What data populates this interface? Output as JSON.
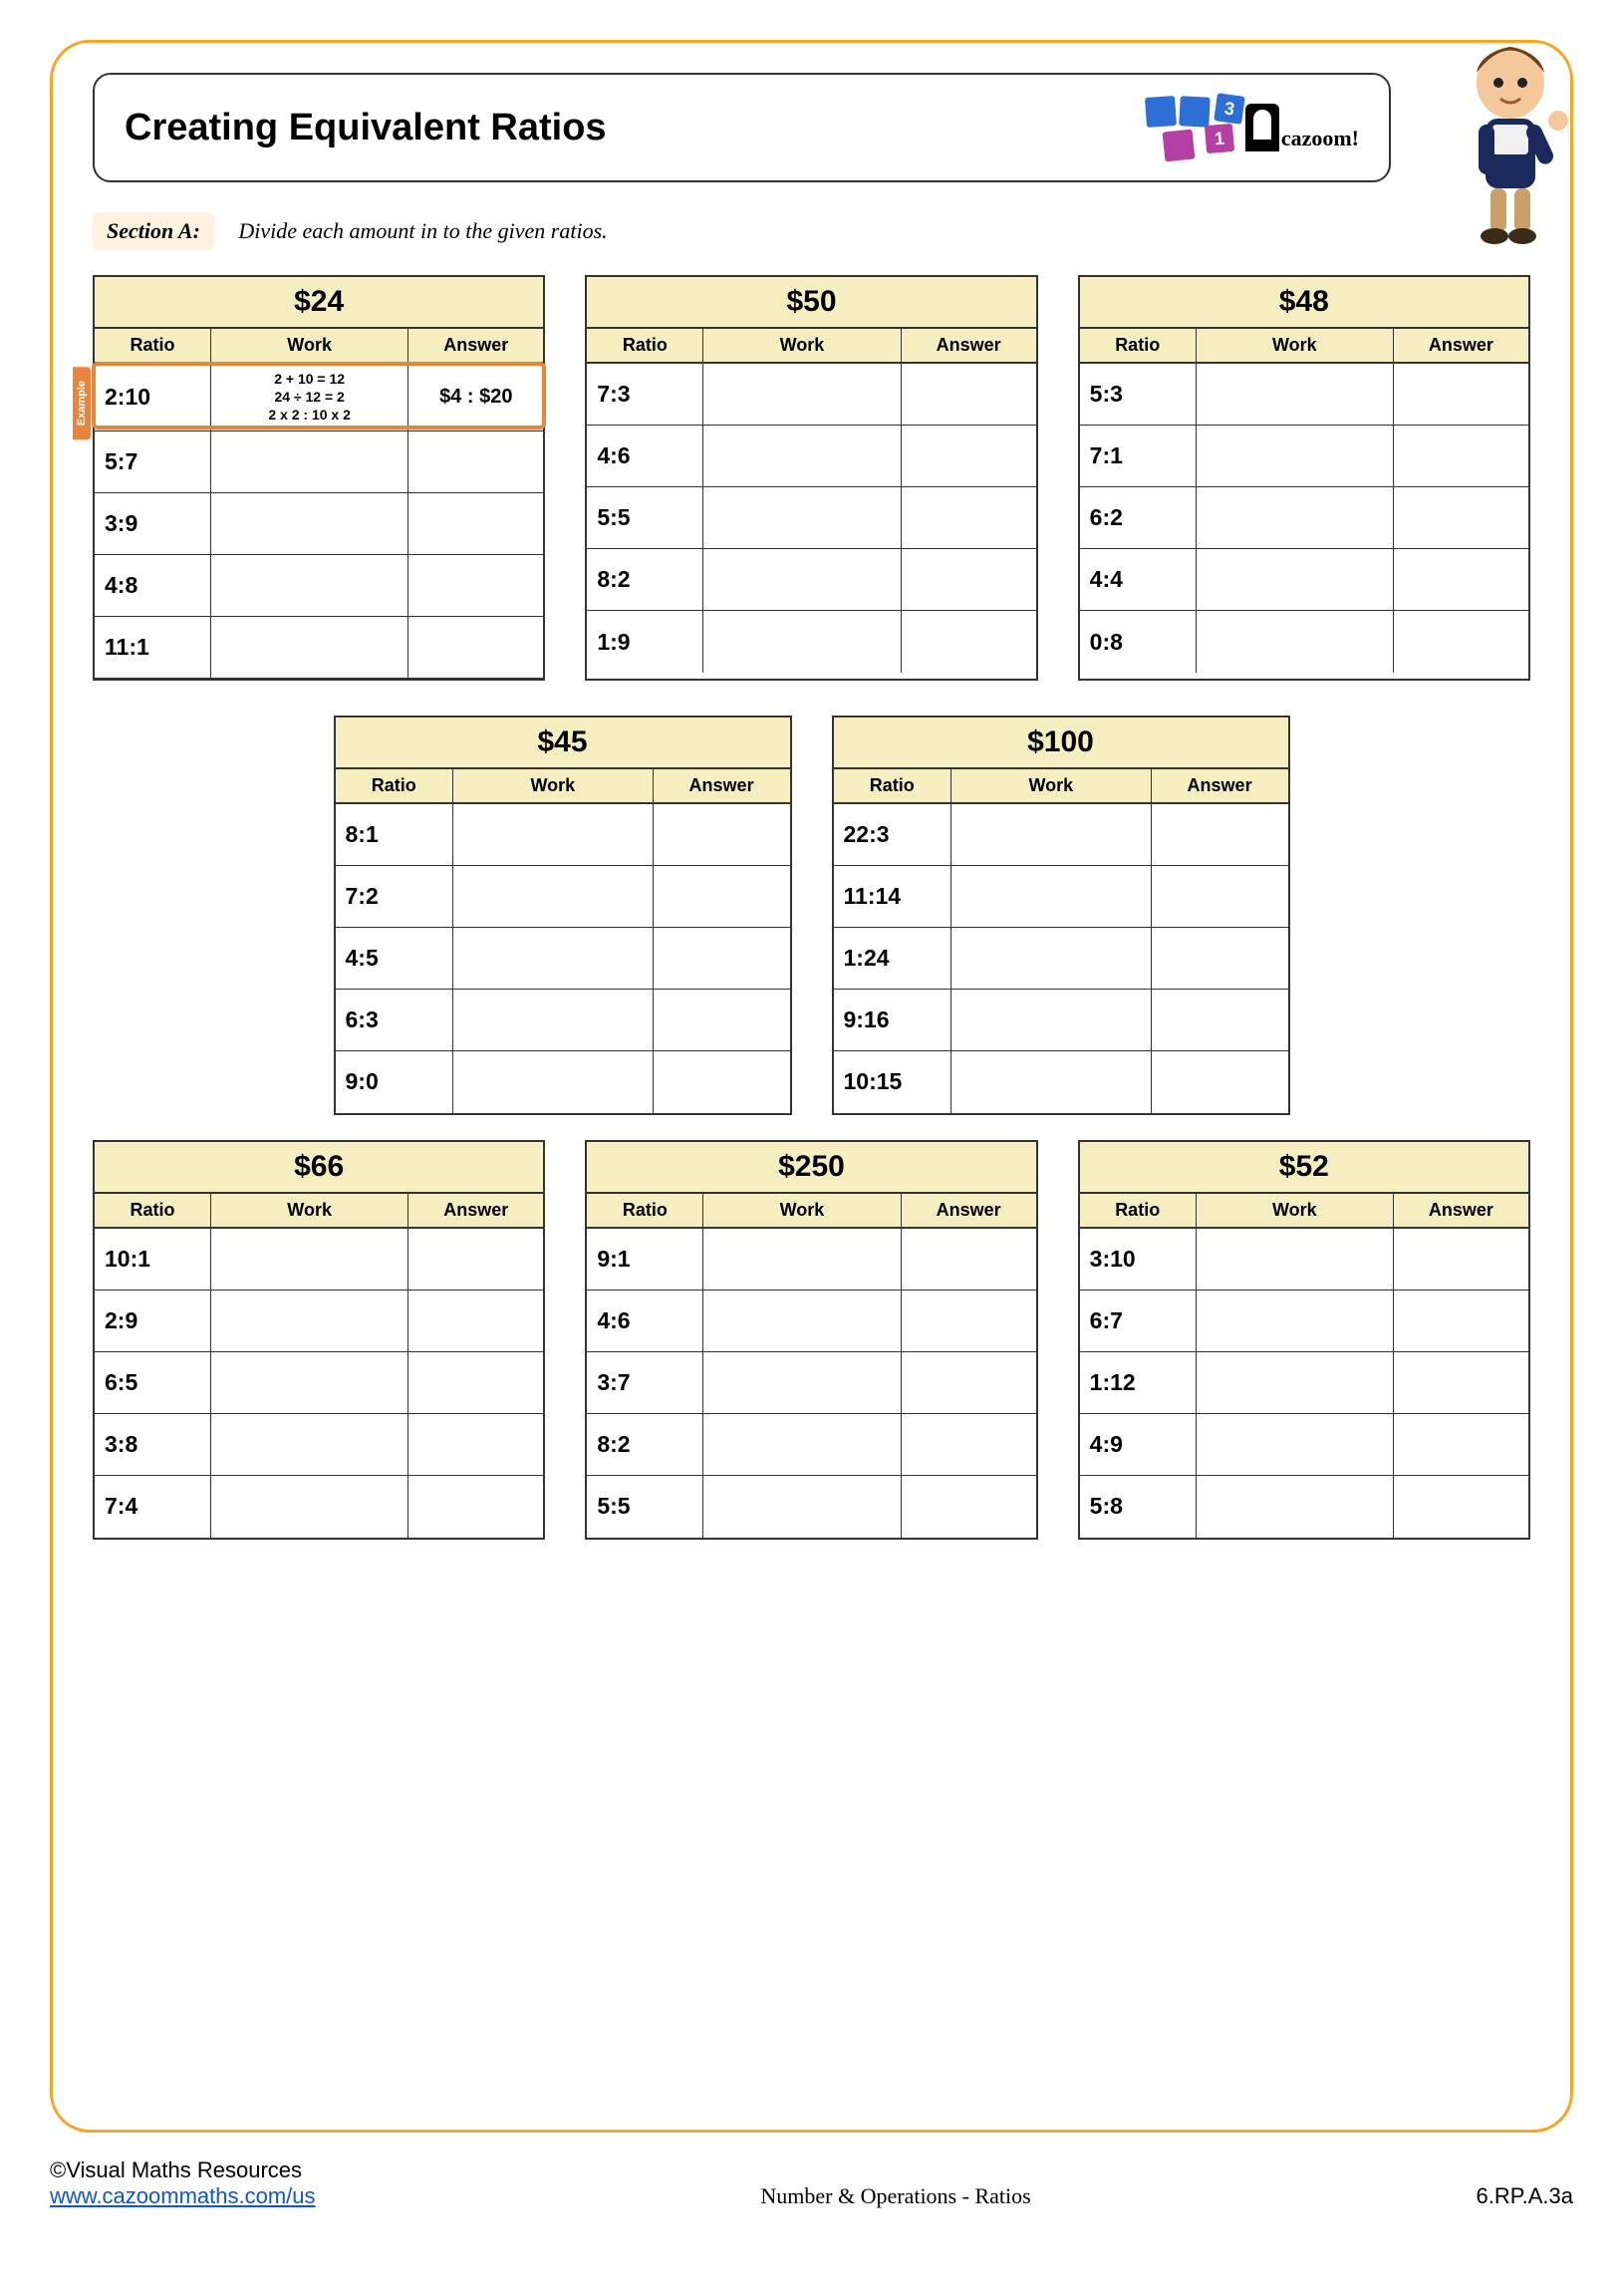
{
  "title": "Creating Equivalent Ratios",
  "logo": {
    "num_top": "3",
    "num_bottom": "1",
    "brand": "cazoom!"
  },
  "section": {
    "label": "Section A:",
    "instruction": "Divide each amount in to the given ratios."
  },
  "column_headers": {
    "ratio": "Ratio",
    "work": "Work",
    "answer": "Answer"
  },
  "example_label": "Example",
  "colors": {
    "page_border": "#f5a623",
    "header_bg": "#f5eec0",
    "example": "#e8853c",
    "border": "#333333"
  },
  "tables_row1": [
    {
      "amount": "$24",
      "has_example": true,
      "rows": [
        {
          "ratio": "2:10",
          "work": "2 + 10 = 12\n24 ÷ 12 = 2\n2 x 2 : 10 x 2",
          "answer": "$4 : $20"
        },
        {
          "ratio": "5:7",
          "work": "",
          "answer": ""
        },
        {
          "ratio": "3:9",
          "work": "",
          "answer": ""
        },
        {
          "ratio": "4:8",
          "work": "",
          "answer": ""
        },
        {
          "ratio": "11:1",
          "work": "",
          "answer": ""
        }
      ]
    },
    {
      "amount": "$50",
      "rows": [
        {
          "ratio": "7:3",
          "work": "",
          "answer": ""
        },
        {
          "ratio": "4:6",
          "work": "",
          "answer": ""
        },
        {
          "ratio": "5:5",
          "work": "",
          "answer": ""
        },
        {
          "ratio": "8:2",
          "work": "",
          "answer": ""
        },
        {
          "ratio": "1:9",
          "work": "",
          "answer": ""
        }
      ]
    },
    {
      "amount": "$48",
      "rows": [
        {
          "ratio": "5:3",
          "work": "",
          "answer": ""
        },
        {
          "ratio": "7:1",
          "work": "",
          "answer": ""
        },
        {
          "ratio": "6:2",
          "work": "",
          "answer": ""
        },
        {
          "ratio": "4:4",
          "work": "",
          "answer": ""
        },
        {
          "ratio": "0:8",
          "work": "",
          "answer": ""
        }
      ]
    }
  ],
  "tables_row2": [
    {
      "amount": "$45",
      "rows": [
        {
          "ratio": "8:1",
          "work": "",
          "answer": ""
        },
        {
          "ratio": "7:2",
          "work": "",
          "answer": ""
        },
        {
          "ratio": "4:5",
          "work": "",
          "answer": ""
        },
        {
          "ratio": "6:3",
          "work": "",
          "answer": ""
        },
        {
          "ratio": "9:0",
          "work": "",
          "answer": ""
        }
      ]
    },
    {
      "amount": "$100",
      "rows": [
        {
          "ratio": "22:3",
          "work": "",
          "answer": ""
        },
        {
          "ratio": "11:14",
          "work": "",
          "answer": ""
        },
        {
          "ratio": "1:24",
          "work": "",
          "answer": ""
        },
        {
          "ratio": "9:16",
          "work": "",
          "answer": ""
        },
        {
          "ratio": "10:15",
          "work": "",
          "answer": ""
        }
      ]
    }
  ],
  "tables_row3": [
    {
      "amount": "$66",
      "rows": [
        {
          "ratio": "10:1",
          "work": "",
          "answer": ""
        },
        {
          "ratio": "2:9",
          "work": "",
          "answer": ""
        },
        {
          "ratio": "6:5",
          "work": "",
          "answer": ""
        },
        {
          "ratio": "3:8",
          "work": "",
          "answer": ""
        },
        {
          "ratio": "7:4",
          "work": "",
          "answer": ""
        }
      ]
    },
    {
      "amount": "$250",
      "rows": [
        {
          "ratio": "9:1",
          "work": "",
          "answer": ""
        },
        {
          "ratio": "4:6",
          "work": "",
          "answer": ""
        },
        {
          "ratio": "3:7",
          "work": "",
          "answer": ""
        },
        {
          "ratio": "8:2",
          "work": "",
          "answer": ""
        },
        {
          "ratio": "5:5",
          "work": "",
          "answer": ""
        }
      ]
    },
    {
      "amount": "$52",
      "rows": [
        {
          "ratio": "3:10",
          "work": "",
          "answer": ""
        },
        {
          "ratio": "6:7",
          "work": "",
          "answer": ""
        },
        {
          "ratio": "1:12",
          "work": "",
          "answer": ""
        },
        {
          "ratio": "4:9",
          "work": "",
          "answer": ""
        },
        {
          "ratio": "5:8",
          "work": "",
          "answer": ""
        }
      ]
    }
  ],
  "footer": {
    "copyright": "©Visual Maths Resources",
    "url_text": "www.cazoommaths.com/us",
    "subject": "Number & Operations - Ratios",
    "standard": "6.RP.A.3a"
  }
}
